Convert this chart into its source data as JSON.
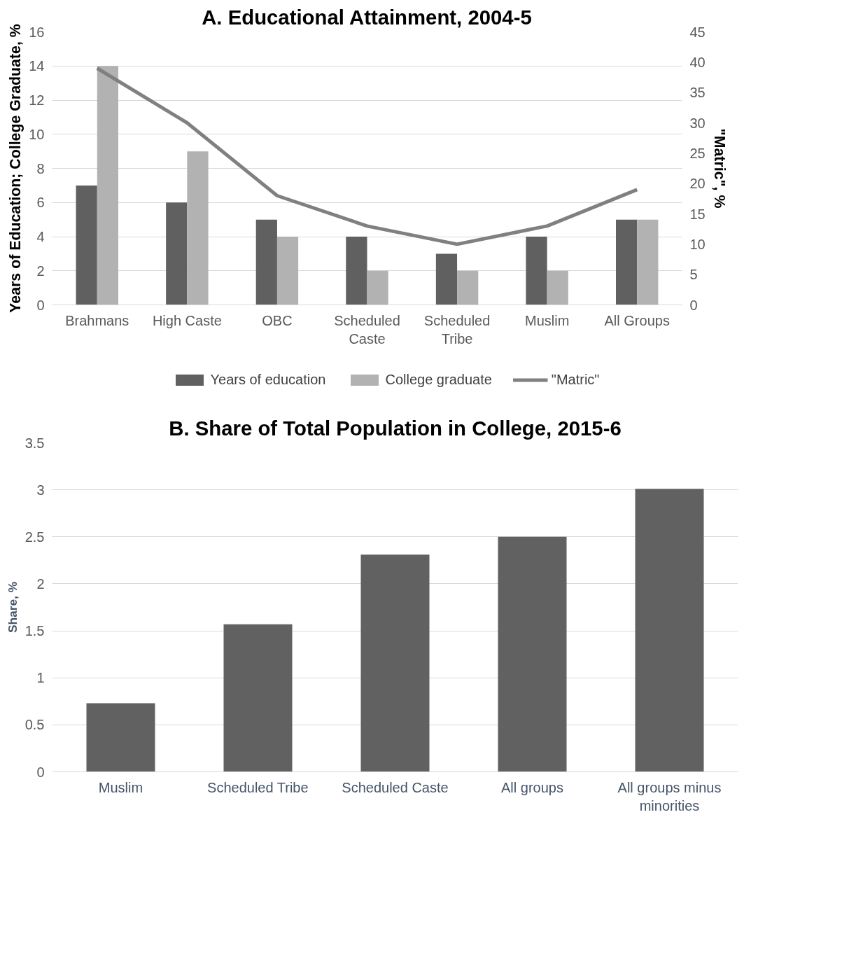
{
  "chart_data": [
    {
      "type": "bar",
      "title": "A. Educational Attainment, 2004-5",
      "ylabel": "Years of Education; College Graduate, %",
      "y2label": "\"Matric\", %",
      "categories": [
        "Brahmans",
        "High Caste",
        "OBC",
        "Scheduled Caste",
        "Scheduled Tribe",
        "Muslim",
        "All Groups"
      ],
      "series": [
        {
          "name": "Years of education",
          "color": "#606060",
          "values": [
            7,
            6,
            5,
            4,
            3,
            4,
            5
          ]
        },
        {
          "name": "College graduate",
          "color": "#b2b2b2",
          "values": [
            14,
            9,
            4,
            2,
            2,
            2,
            5
          ]
        },
        {
          "name": "\"Matric\"",
          "type": "line",
          "axis": "y2",
          "color": "#808080",
          "values": [
            39,
            30,
            18,
            13,
            10,
            13,
            19
          ]
        }
      ],
      "ylim": [
        0,
        16
      ],
      "yticks": [
        0,
        2,
        4,
        6,
        8,
        10,
        12,
        14,
        16
      ],
      "y2lim": [
        0,
        45
      ],
      "y2ticks": [
        0,
        5,
        10,
        15,
        20,
        25,
        30,
        35,
        40,
        45
      ],
      "grid": "y",
      "legend": "bottom",
      "marker": "none",
      "line_style": "solid"
    },
    {
      "type": "bar",
      "title": "B. Share of Total Population in College, 2015-6",
      "ylabel": "Share, %",
      "categories": [
        "Muslim",
        "Scheduled Tribe",
        "Scheduled Caste",
        "All groups",
        "All groups minus minorities"
      ],
      "values": [
        0.73,
        1.57,
        2.31,
        2.5,
        3.01
      ],
      "color": "#616161",
      "ylim": [
        0,
        3.5
      ],
      "yticks": [
        0,
        0.5,
        1,
        1.5,
        2,
        2.5,
        3,
        3.5
      ],
      "grid": "y"
    }
  ]
}
